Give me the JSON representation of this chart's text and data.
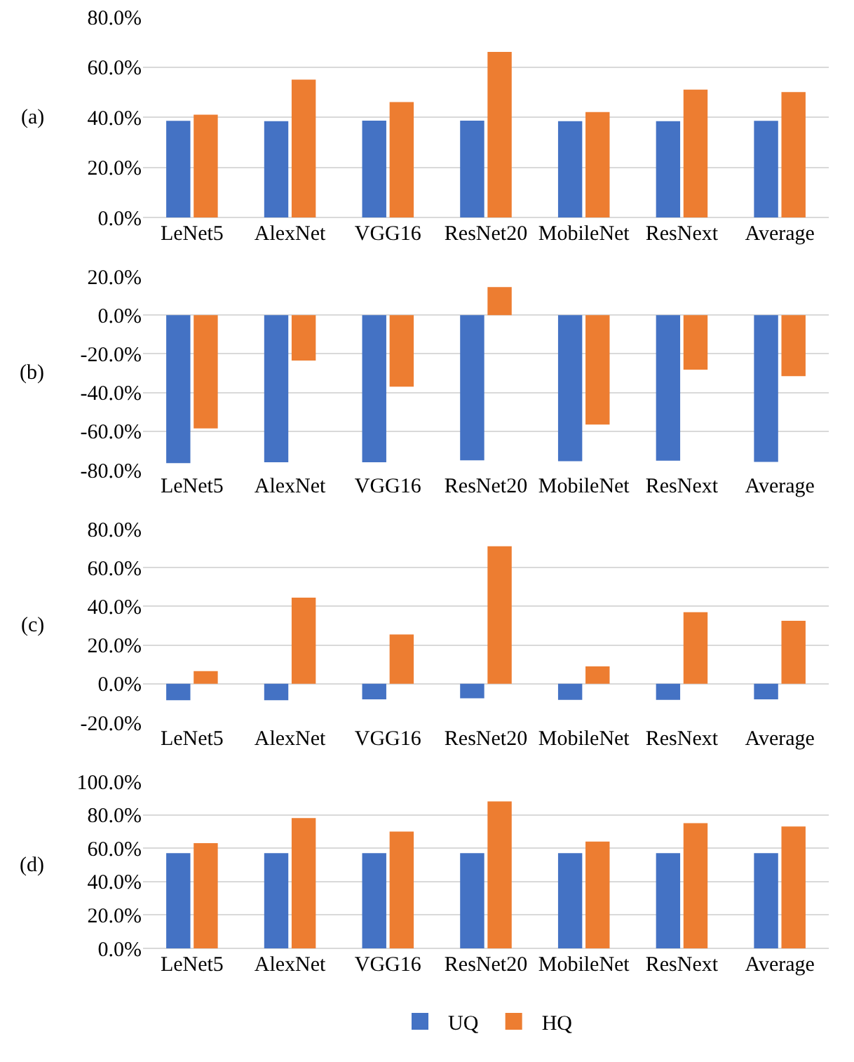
{
  "chart_data": [
    {
      "type": "bar",
      "ylabel": "(a)",
      "categories": [
        "LeNet5",
        "AlexNet",
        "VGG16",
        "ResNet20",
        "MobileNet",
        "ResNext",
        "Average"
      ],
      "series": [
        {
          "color": "#4472c4",
          "values": [
            38.5,
            38.4,
            38.6,
            38.6,
            38.4,
            38.4,
            38.5
          ]
        },
        {
          "color": "#ed7d31",
          "values": [
            41,
            55,
            46,
            66,
            42,
            51,
            50
          ]
        }
      ],
      "ylim": [
        0,
        80
      ],
      "yticks": [
        {
          "value": 0,
          "label": "0.0%"
        },
        {
          "value": 20,
          "label": "20.0%"
        },
        {
          "value": 40,
          "label": "40.0%"
        },
        {
          "value": 60,
          "label": "60.0%"
        },
        {
          "value": 80,
          "label": "80.0%"
        }
      ],
      "grid": "y",
      "legend": false
    },
    {
      "type": "bar",
      "ylabel": "(b)",
      "categories": [
        "LeNet5",
        "AlexNet",
        "VGG16",
        "ResNet20",
        "MobileNet",
        "ResNext",
        "Average"
      ],
      "series": [
        {
          "color": "#4472c4",
          "values": [
            -76.5,
            -76.0,
            -76.0,
            -75.0,
            -75.5,
            -75.2,
            -75.8
          ]
        },
        {
          "color": "#ed7d31",
          "values": [
            -58.5,
            -23.5,
            -37.0,
            14.5,
            -56.5,
            -28.2,
            -31.5
          ]
        }
      ],
      "ylim": [
        -80,
        20
      ],
      "yticks": [
        {
          "value": -80,
          "label": "-80.0%"
        },
        {
          "value": -60,
          "label": "-60.0%"
        },
        {
          "value": -40,
          "label": "-40.0%"
        },
        {
          "value": -20,
          "label": "-20.0%"
        },
        {
          "value": 0,
          "label": "0.0%"
        },
        {
          "value": 20,
          "label": "20.0%"
        }
      ],
      "grid": "y",
      "legend": false
    },
    {
      "type": "bar",
      "ylabel": "(c)",
      "categories": [
        "LeNet5",
        "AlexNet",
        "VGG16",
        "ResNet20",
        "MobileNet",
        "ResNext",
        "Average"
      ],
      "series": [
        {
          "color": "#4472c4",
          "values": [
            -8.5,
            -8.5,
            -8.0,
            -7.5,
            -8.3,
            -8.3,
            -8.0
          ]
        },
        {
          "color": "#ed7d31",
          "values": [
            6.5,
            44.5,
            25.5,
            71.0,
            9.0,
            37.0,
            32.5
          ]
        }
      ],
      "ylim": [
        -20,
        80
      ],
      "yticks": [
        {
          "value": -20,
          "label": "-20.0%"
        },
        {
          "value": 0,
          "label": "0.0%"
        },
        {
          "value": 20,
          "label": "20.0%"
        },
        {
          "value": 40,
          "label": "40.0%"
        },
        {
          "value": 60,
          "label": "60.0%"
        },
        {
          "value": 80,
          "label": "80.0%"
        }
      ],
      "grid": "y",
      "legend": false
    },
    {
      "type": "bar",
      "ylabel": "(d)",
      "categories": [
        "LeNet5",
        "AlexNet",
        "VGG16",
        "ResNet20",
        "MobileNet",
        "ResNext",
        "Average"
      ],
      "series": [
        {
          "name": "UQ",
          "color": "#4472c4",
          "values": [
            57,
            57,
            57,
            57,
            57,
            57,
            57
          ]
        },
        {
          "name": "HQ",
          "color": "#ed7d31",
          "values": [
            63,
            78,
            70,
            88,
            64,
            75,
            73
          ]
        }
      ],
      "ylim": [
        0,
        100
      ],
      "yticks": [
        {
          "value": 0,
          "label": "0.0%"
        },
        {
          "value": 20,
          "label": "20.0%"
        },
        {
          "value": 40,
          "label": "40.0%"
        },
        {
          "value": 60,
          "label": "60.0%"
        },
        {
          "value": 80,
          "label": "80.0%"
        },
        {
          "value": 100,
          "label": "100.0%"
        }
      ],
      "grid": "y",
      "legend": "bottom"
    }
  ]
}
